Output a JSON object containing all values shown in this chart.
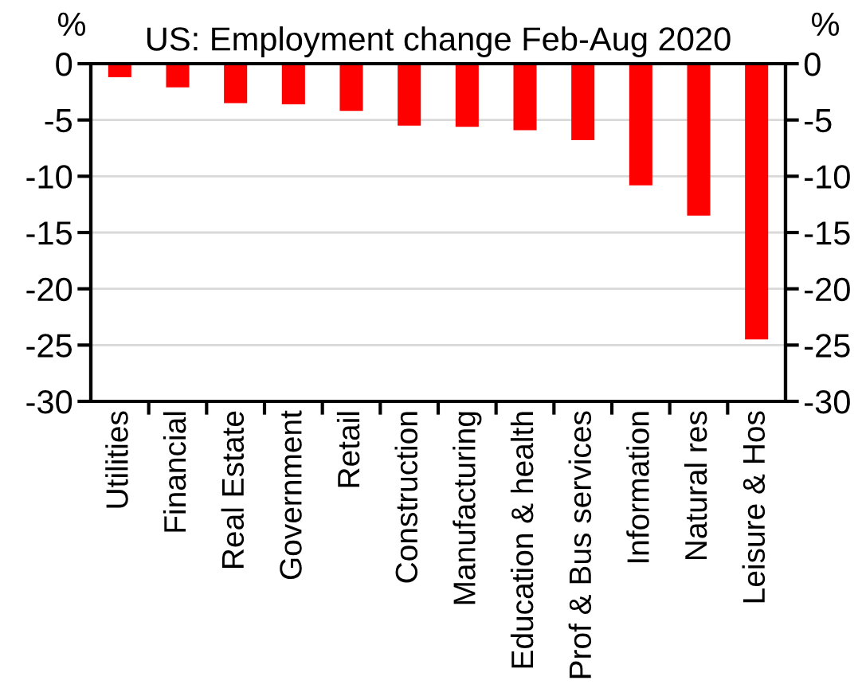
{
  "chart_data": {
    "type": "bar",
    "title": "US: Employment change Feb-Aug 2020",
    "ylabel": "%",
    "y2label": "%",
    "categories": [
      "Utilities",
      "Financial",
      "Real Estate",
      "Government",
      "Retail",
      "Construction",
      "Manufacturing",
      "Education & health",
      "Prof & Bus services",
      "Information",
      "Natural res",
      "Leisure & Hos"
    ],
    "values": [
      -1.2,
      -2.1,
      -3.5,
      -3.6,
      -4.2,
      -5.5,
      -5.6,
      -5.9,
      -6.8,
      -10.8,
      -13.5,
      -24.5
    ],
    "color": "#ff0000",
    "ylim": [
      -30,
      0
    ],
    "yticks": [
      -30,
      -25,
      -20,
      -15,
      -10,
      -5,
      0
    ],
    "y2lim": [
      -30,
      0
    ],
    "y2ticks": [
      -30,
      -25,
      -20,
      -15,
      -10,
      -5,
      0
    ],
    "grid": "y"
  }
}
